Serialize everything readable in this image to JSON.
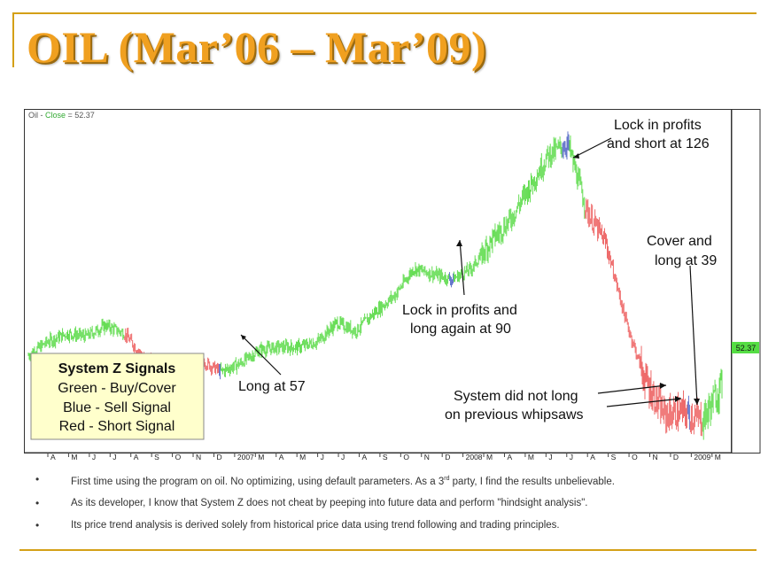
{
  "slide": {
    "title": "OIL (Mar’06 – Mar’09)"
  },
  "chart_header": {
    "symbol": "Oil",
    "sep": " - ",
    "field": "Close",
    "eq": " = ",
    "value": "52.37"
  },
  "last_price_label": "52.37",
  "legend_box": {
    "title": "System Z Signals",
    "lines": [
      "Green - Buy/Cover",
      "Blue - Sell Signal",
      "Red - Short Signal"
    ]
  },
  "annotations": {
    "long57": "Long at 57",
    "lock90_line1": "Lock in profits and",
    "lock90_line2": "long again at 90",
    "lock126_line1": "Lock in profits",
    "lock126_line2": "and short at 126",
    "cover_line1": "Cover and",
    "cover_line2": "long at 39",
    "whipsaw_line1": "System did not long",
    "whipsaw_line2": "on previous whipsaws"
  },
  "bullets": [
    {
      "before": "First time using the program on oil. No optimizing, using default parameters. As a 3",
      "sup": "rd",
      "after": " party, I find the results unbelievable."
    },
    {
      "before": "As its developer, I know that System Z does not cheat by peeping into future data and perform \"hindsight analysis\".",
      "sup": "",
      "after": ""
    },
    {
      "before": "Its price trend analysis is derived solely from historical price data using trend following and trading principles.",
      "sup": "",
      "after": ""
    }
  ],
  "colors": {
    "buy": "#66dd55",
    "sell": "#6677cc",
    "short": "#ee6a6a",
    "title": "#f0a020",
    "accent_rule": "#d4a017",
    "legend_bg": "#ffffcc",
    "price_tag": "#55dd44"
  },
  "chart_data": {
    "type": "line",
    "title": "Oil - Close = 52.37",
    "x_tick_labels": [
      "A",
      "M",
      "J",
      "J",
      "A",
      "S",
      "O",
      "N",
      "D",
      "2007",
      "M",
      "A",
      "M",
      "J",
      "J",
      "A",
      "S",
      "O",
      "N",
      "D",
      "2008",
      "M",
      "A",
      "M",
      "J",
      "J",
      "A",
      "S",
      "O",
      "N",
      "D",
      "2009",
      "M"
    ],
    "x_range": [
      "2006-03",
      "2009-03"
    ],
    "y_range_approx": [
      33,
      150
    ],
    "series": [
      {
        "x": [
          "2006-03",
          "2006-04",
          "2006-05",
          "2006-06",
          "2006-07",
          "2006-08",
          "2006-09",
          "2006-10",
          "2006-11",
          "2006-12",
          "2007-01",
          "2007-02",
          "2007-03",
          "2007-04",
          "2007-05",
          "2007-06",
          "2007-07",
          "2007-08",
          "2007-09",
          "2007-10",
          "2007-11",
          "2007-12",
          "2008-01",
          "2008-02",
          "2008-03",
          "2008-04",
          "2008-05",
          "2008-06",
          "2008-07",
          "2008-08",
          "2008-09",
          "2008-10",
          "2008-11",
          "2008-12",
          "2009-01",
          "2009-02",
          "2009-03"
        ],
        "values": [
          63,
          68,
          71,
          70,
          74,
          71,
          62,
          59,
          60,
          61,
          57,
          60,
          65,
          66,
          66,
          68,
          75,
          72,
          79,
          85,
          95,
          93,
          91,
          95,
          105,
          113,
          125,
          137,
          141,
          116,
          104,
          76,
          54,
          41,
          42,
          39,
          52.37
        ]
      }
    ],
    "signals": [
      {
        "date": "2006-08",
        "signal": "Short"
      },
      {
        "date": "2007-01",
        "signal": "Long/Cover",
        "price": 57
      },
      {
        "date": "2008-01",
        "signal": "Sell then Long",
        "price": 90
      },
      {
        "date": "2008-07",
        "signal": "Sell then Short",
        "price": 126
      },
      {
        "date": "2009-02",
        "signal": "Cover and Long",
        "price": 39
      }
    ]
  }
}
